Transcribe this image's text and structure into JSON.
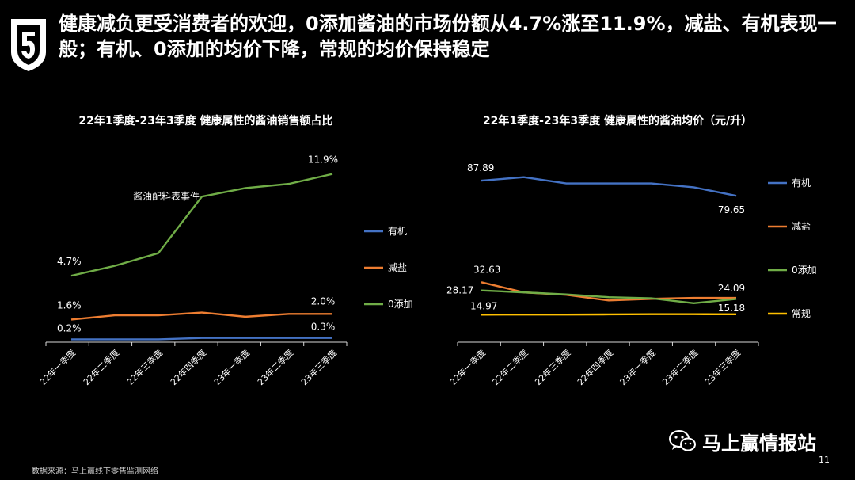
{
  "page": {
    "title": "健康减负更受消费者的欢迎，0添加酱油的市场份额从4.7%涨至11.9%，减盐、有机表现一般；有机、0添加的均价下降，常规的均价保持稳定",
    "source": "数据来源：马上赢线下零售监测网络",
    "brand_name": "马上赢情报站",
    "page_number": "11",
    "logo_icon": "shield-logo-icon",
    "brand_icon": "wechat-icon"
  },
  "colors": {
    "有机": "#4472C4",
    "减盐": "#ED7D31",
    "0添加": "#70AD47",
    "常规": "#FFC000"
  },
  "chart_data": [
    {
      "type": "line",
      "title": "22年1季度-23年3季度 健康属性的酱油销售额占比",
      "categories": [
        "22年一季度",
        "22年二季度",
        "22年三季度",
        "22年四季度",
        "23年一季度",
        "23年二季度",
        "23年三季度"
      ],
      "series": [
        {
          "name": "有机",
          "values": [
            0.2,
            0.2,
            0.2,
            0.3,
            0.3,
            0.3,
            0.3
          ],
          "unit": "%"
        },
        {
          "name": "减盐",
          "values": [
            1.6,
            1.9,
            1.9,
            2.1,
            1.8,
            2.0,
            2.0
          ],
          "unit": "%"
        },
        {
          "name": "0添加",
          "values": [
            4.7,
            5.4,
            6.3,
            10.3,
            10.9,
            11.2,
            11.9
          ],
          "unit": "%"
        }
      ],
      "data_labels": [
        {
          "series": "有机",
          "index": 0,
          "text": "0.2%"
        },
        {
          "series": "有机",
          "index": 6,
          "text": "0.3%"
        },
        {
          "series": "减盐",
          "index": 0,
          "text": "1.6%"
        },
        {
          "series": "减盐",
          "index": 6,
          "text": "2.0%"
        },
        {
          "series": "0添加",
          "index": 0,
          "text": "4.7%"
        },
        {
          "series": "0添加",
          "index": 6,
          "text": "11.9%"
        }
      ],
      "annotation": {
        "text": "酱油配料表事件",
        "near_category": "22年四季度"
      },
      "ylim": [
        0,
        13
      ],
      "legend_position": "right",
      "grid": false
    },
    {
      "type": "line",
      "title": "22年1季度-23年3季度 健康属性的酱油均价（元/升）",
      "categories": [
        "22年一季度",
        "22年二季度",
        "22年三季度",
        "22年四季度",
        "23年一季度",
        "23年二季度",
        "23年三季度"
      ],
      "series": [
        {
          "name": "有机",
          "values": [
            87.89,
            89.8,
            86.4,
            86.4,
            86.4,
            84.3,
            79.65
          ]
        },
        {
          "name": "减盐",
          "values": [
            32.63,
            27.1,
            25.8,
            22.7,
            23.6,
            24.1,
            24.09
          ]
        },
        {
          "name": "0添加",
          "values": [
            28.17,
            27.1,
            26.0,
            24.5,
            23.9,
            21.2,
            23.5
          ]
        },
        {
          "name": "常规",
          "values": [
            14.97,
            15.0,
            15.0,
            15.1,
            15.2,
            15.2,
            15.18
          ]
        }
      ],
      "data_labels": [
        {
          "series": "有机",
          "index": 0,
          "text": "87.89"
        },
        {
          "series": "有机",
          "index": 6,
          "text": "79.65"
        },
        {
          "series": "减盐",
          "index": 0,
          "text": "32.63"
        },
        {
          "series": "减盐",
          "index": 6,
          "text": "24.09"
        },
        {
          "series": "0添加",
          "index": 0,
          "text": "28.17"
        },
        {
          "series": "常规",
          "index": 0,
          "text": "14.97"
        },
        {
          "series": "常规",
          "index": 6,
          "text": "15.18"
        }
      ],
      "ylim": [
        0,
        100
      ],
      "legend_position": "right",
      "grid": false
    }
  ]
}
